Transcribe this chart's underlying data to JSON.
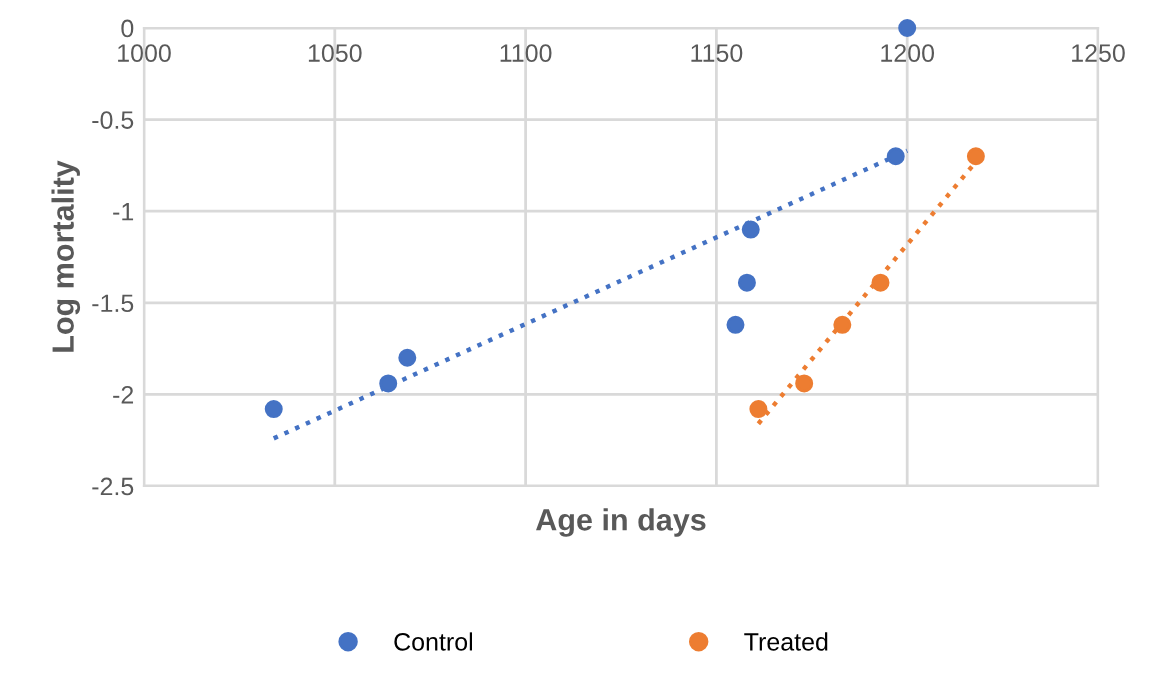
{
  "chart_data": {
    "type": "scatter",
    "xlabel": "Age in days",
    "ylabel": "Log mortality",
    "xlim": [
      1000,
      1250
    ],
    "xticks": [
      1000,
      1050,
      1100,
      1150,
      1200,
      1250
    ],
    "ylim": [
      -2.5,
      0
    ],
    "yticks": [
      0,
      -0.5,
      -1,
      -1.5,
      -2,
      -2.5
    ],
    "grid": true,
    "legend": "bottom",
    "marker": "circle",
    "series": [
      {
        "name": "Control",
        "color": "#4472c4",
        "x": [
          1034,
          1064,
          1069,
          1155,
          1158,
          1159,
          1197,
          1200
        ],
        "values": [
          -2.08,
          -1.94,
          -1.8,
          -1.62,
          -1.39,
          -1.1,
          -0.7,
          0
        ]
      },
      {
        "name": "Treated",
        "color": "#ed7d31",
        "x": [
          1161,
          1173,
          1183,
          1193,
          1218
        ],
        "values": [
          -2.08,
          -1.94,
          -1.62,
          -1.39,
          -0.7
        ]
      },
      {
        "type": "line",
        "color": "#4472c4",
        "line_style": "dotted",
        "marker": "none",
        "x": [
          1034,
          1200
        ],
        "values": [
          -2.24,
          -0.67
        ]
      },
      {
        "type": "line",
        "color": "#ed7d31",
        "line_style": "dotted",
        "marker": "none",
        "x": [
          1161,
          1218
        ],
        "values": [
          -2.16,
          -0.73
        ]
      }
    ]
  }
}
